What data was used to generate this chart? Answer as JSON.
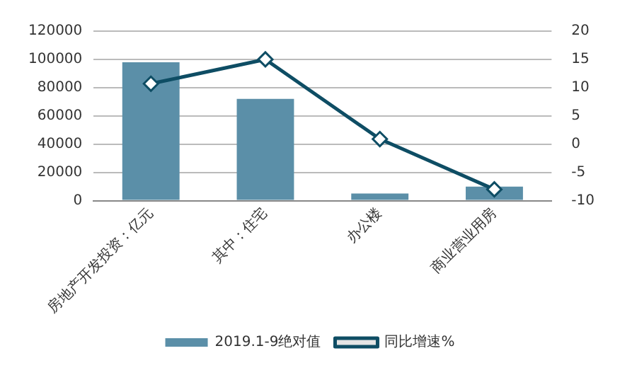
{
  "chart_data": {
    "type": "bar",
    "categories": [
      "房地产开发投资：亿元",
      "其中：住宅",
      "办公楼",
      "商业营业用房"
    ],
    "series": [
      {
        "name": "2019.1-9绝对值",
        "color": "#5b8fa8",
        "values": [
          98000,
          72000,
          5000,
          10000
        ]
      },
      {
        "name": "同比增速%",
        "type": "line",
        "axis": "y2",
        "color": "#0e4d64",
        "marker": "diamond",
        "values": [
          10.7,
          15,
          0.9,
          -8
        ]
      }
    ],
    "ylim": [
      0,
      120000
    ],
    "yticks": [
      0,
      20000,
      40000,
      60000,
      80000,
      100000,
      120000
    ],
    "y2lim": [
      -10,
      20
    ],
    "y2ticks": [
      -10,
      -5,
      0,
      5,
      10,
      15,
      20
    ],
    "grid": "y",
    "legend": "bottom"
  }
}
